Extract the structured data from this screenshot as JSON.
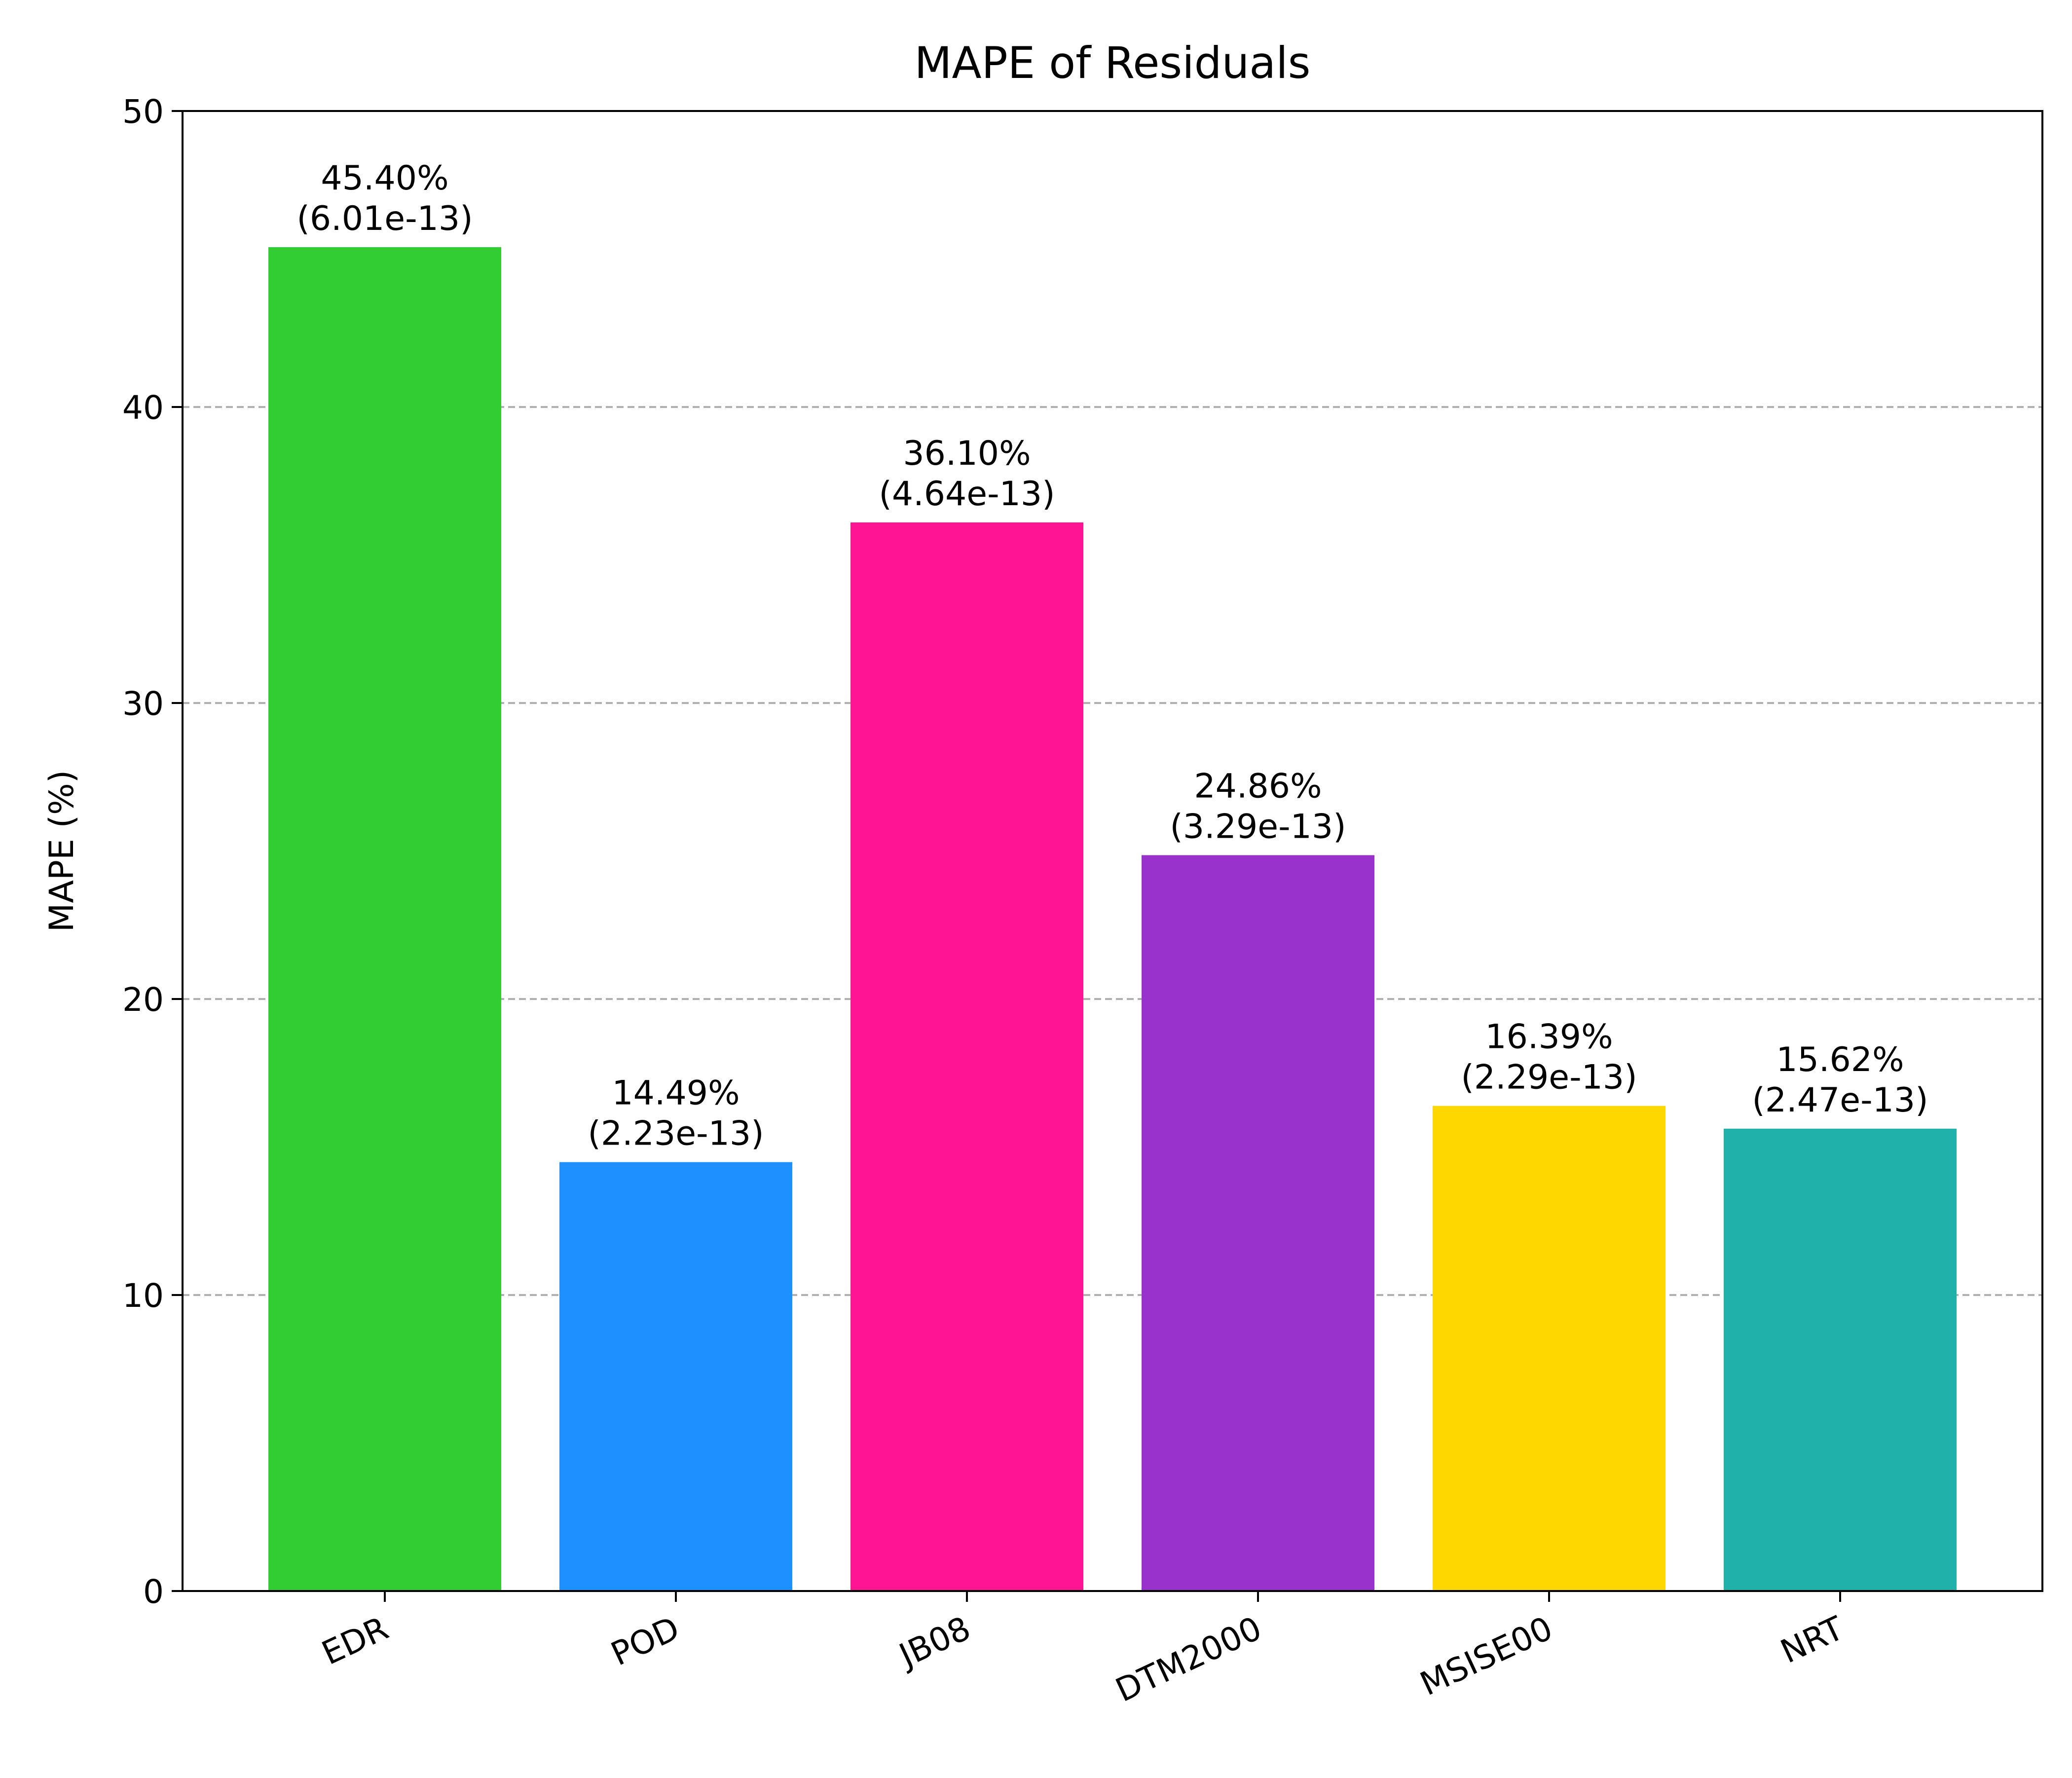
{
  "chart_data": {
    "type": "bar",
    "title": "MAPE of Residuals",
    "xlabel": "",
    "ylabel": "MAPE (%)",
    "ylim": [
      0,
      50
    ],
    "yticks": [
      0,
      10,
      20,
      30,
      40,
      50
    ],
    "grid": "y-dashed",
    "categories": [
      "EDR",
      "POD",
      "JB08",
      "DTM2000",
      "MSISE00",
      "NRT"
    ],
    "values": [
      45.4,
      14.49,
      36.1,
      24.86,
      16.39,
      15.62
    ],
    "bar_labels": [
      [
        "45.40%",
        "(6.01e-13)"
      ],
      [
        "14.49%",
        "(2.23e-13)"
      ],
      [
        "36.10%",
        "(4.64e-13)"
      ],
      [
        "24.86%",
        "(3.29e-13)"
      ],
      [
        "16.39%",
        "(2.29e-13)"
      ],
      [
        "15.62%",
        "(2.47e-13)"
      ]
    ],
    "colors": [
      "#32CD32",
      "#1E90FF",
      "#FF1493",
      "#9932CC",
      "#FFD700",
      "#20B2AA"
    ]
  }
}
